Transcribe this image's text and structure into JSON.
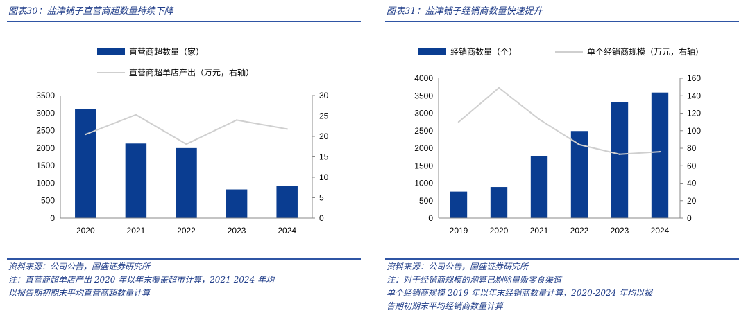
{
  "left": {
    "title": "图表30：盐津铺子直营商超数量持续下降",
    "source": "资料来源：公司公告，国盛证券研究所",
    "notes": [
      "注：直营商超单店产出 2020 年以年末覆盖超市计算，2021-2024 年均",
      "以报告期初期末平均直营商超数量计算"
    ],
    "chart_data": {
      "type": "bar+line",
      "categories": [
        "2020",
        "2021",
        "2022",
        "2023",
        "2024"
      ],
      "series": [
        {
          "name": "直营商超数量（家）",
          "type": "bar",
          "axis": "left",
          "values": [
            3110,
            2130,
            2000,
            820,
            920
          ]
        },
        {
          "name": "直营商超单店产出（万元，右轴）",
          "type": "line",
          "axis": "right",
          "values": [
            20.5,
            25.3,
            18.1,
            24.0,
            21.8
          ]
        }
      ],
      "ylim_left": [
        0,
        3500
      ],
      "yticks_left": [
        0,
        500,
        1000,
        1500,
        2000,
        2500,
        3000,
        3500
      ],
      "ylim_right": [
        0,
        30
      ],
      "yticks_right": [
        0,
        5,
        10,
        15,
        20,
        25,
        30
      ],
      "legend": "top-center",
      "colors": {
        "bar": "#0a3d91",
        "line": "#cfcfcf"
      }
    }
  },
  "right": {
    "title": "图表31：盐津铺子经销商数量快速提升",
    "source": "资料来源：公司公告，国盛证券研究所",
    "notes": [
      "注：对于经销商规模的测算已剔除量贩零食渠道",
      "单个经销商规模 2019 年以年末经销商数量计算，2020-2024 年均以报",
      "告期初期末平均经销商数量计算"
    ],
    "chart_data": {
      "type": "bar+line",
      "categories": [
        "2019",
        "2020",
        "2021",
        "2022",
        "2023",
        "2024"
      ],
      "series": [
        {
          "name": "经销商数量（个）",
          "type": "bar",
          "axis": "left",
          "values": [
            760,
            890,
            1770,
            2490,
            3310,
            3590
          ]
        },
        {
          "name": "单个经销商规模（万元，右轴）",
          "type": "line",
          "axis": "right",
          "values": [
            110,
            149,
            113,
            84,
            73,
            76
          ]
        }
      ],
      "ylim_left": [
        0,
        4000
      ],
      "yticks_left": [
        0,
        500,
        1000,
        1500,
        2000,
        2500,
        3000,
        3500,
        4000
      ],
      "ylim_right": [
        0,
        160
      ],
      "yticks_right": [
        0,
        20,
        40,
        60,
        80,
        100,
        120,
        140,
        160
      ],
      "legend": "top-center",
      "colors": {
        "bar": "#0a3d91",
        "line": "#cfcfcf"
      }
    }
  }
}
